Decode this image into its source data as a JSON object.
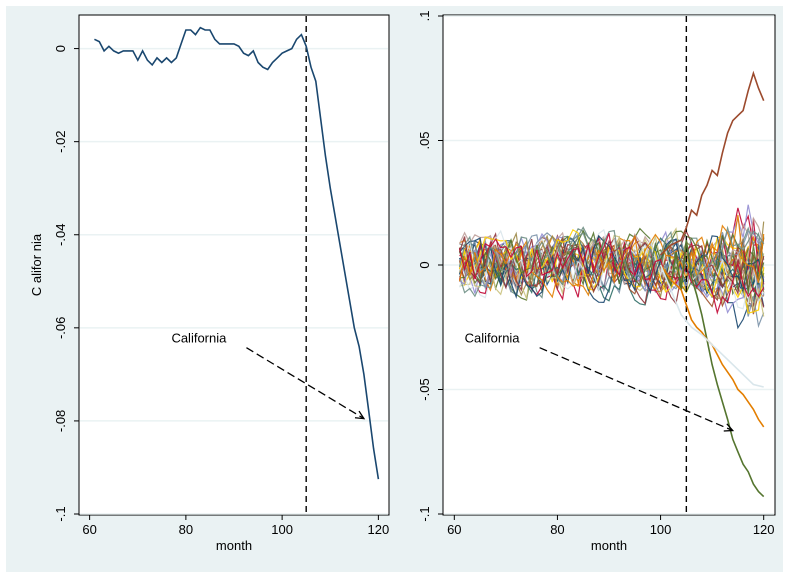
{
  "chart_data": [
    {
      "type": "line",
      "panel": "left",
      "xlabel": "month",
      "ylabel": "C alifor nia",
      "xlim": [
        58,
        122
      ],
      "ylim": [
        -0.1,
        0.007
      ],
      "xticks": [
        60,
        80,
        100,
        120
      ],
      "xtick_labels": [
        "60",
        "80",
        "100",
        "120"
      ],
      "yticks": [
        0,
        -0.02,
        -0.04,
        -0.06,
        -0.08,
        -0.1
      ],
      "ytick_labels": [
        "0",
        "-.02",
        "-.04",
        "-.06",
        "-.08",
        "-.1"
      ],
      "grid": true,
      "vline_x": 105,
      "annotation": {
        "text": "California",
        "text_at": [
          77,
          -0.0632
        ],
        "arrow_to": [
          117,
          -0.0795
        ]
      },
      "series": [
        {
          "color": "#1a476f",
          "x": [
            61,
            62,
            63,
            64,
            65,
            66,
            67,
            68,
            69,
            70,
            71,
            72,
            73,
            74,
            75,
            76,
            77,
            78,
            79,
            80,
            81,
            82,
            83,
            84,
            85,
            86,
            87,
            88,
            89,
            90,
            91,
            92,
            93,
            94,
            95,
            96,
            97,
            98,
            99,
            100,
            101,
            102,
            103,
            104,
            105,
            106,
            107,
            108,
            109,
            110,
            111,
            112,
            113,
            114,
            115,
            116,
            117,
            118,
            119,
            120
          ],
          "y": [
            0.002,
            0.0015,
            -0.0005,
            0.0005,
            -0.0005,
            -0.001,
            -0.0005,
            -0.0005,
            -0.0005,
            -0.0025,
            -0.0005,
            -0.0025,
            -0.0035,
            -0.002,
            -0.003,
            -0.002,
            -0.003,
            -0.002,
            0.001,
            0.004,
            0.004,
            0.003,
            0.0045,
            0.004,
            0.004,
            0.002,
            0.001,
            0.001,
            0.001,
            0.001,
            0.0005,
            -0.001,
            -0.0015,
            -0.0005,
            -0.003,
            -0.004,
            -0.0045,
            -0.003,
            -0.002,
            -0.001,
            -0.0005,
            0.0,
            0.002,
            0.003,
            0.0005,
            -0.004,
            -0.007,
            -0.015,
            -0.023,
            -0.03,
            -0.036,
            -0.042,
            -0.048,
            -0.054,
            -0.06,
            -0.064,
            -0.07,
            -0.078,
            -0.086,
            -0.0925
          ]
        }
      ]
    },
    {
      "type": "line",
      "panel": "right",
      "xlabel": "month",
      "xlim": [
        58,
        122
      ],
      "ylim": [
        -0.1,
        0.1
      ],
      "xticks": [
        60,
        80,
        100,
        120
      ],
      "xtick_labels": [
        "60",
        "80",
        "100",
        "120"
      ],
      "yticks": [
        0.1,
        0.05,
        0,
        -0.05,
        -0.1
      ],
      "ytick_labels": [
        ".1",
        ".05",
        "0",
        "-.05",
        "-.1"
      ],
      "grid": true,
      "vline_x": 105,
      "annotation": {
        "text": "California",
        "text_at": [
          62,
          -0.0312
        ],
        "arrow_to": [
          114,
          -0.0665
        ]
      },
      "noise_series_count": 36,
      "noise_band": [
        -0.015,
        0.015
      ],
      "noise_palette": [
        "#1a476f",
        "#90353b",
        "#55752f",
        "#e37e00",
        "#6e8e84",
        "#c10534",
        "#938dd2",
        "#cac27e",
        "#a0522d",
        "#7b92a8",
        "#2d6d66",
        "#9c8847",
        "#bfa19c",
        "#ffd200",
        "#d9e6eb"
      ],
      "series": [
        {
          "color": "#9c4a2d",
          "x": [
            100,
            102,
            104,
            105,
            106,
            107,
            108,
            109,
            110,
            111,
            112,
            113,
            114,
            115,
            116,
            117,
            118,
            119,
            120
          ],
          "y": [
            0.004,
            0.008,
            0.01,
            0.015,
            0.022,
            0.02,
            0.028,
            0.032,
            0.038,
            0.036,
            0.045,
            0.053,
            0.058,
            0.06,
            0.062,
            0.07,
            0.077,
            0.071,
            0.066
          ]
        },
        {
          "color": "#55752f",
          "x": [
            100,
            101,
            102,
            103,
            104,
            105,
            106,
            107,
            108,
            109,
            110,
            111,
            112,
            113,
            114,
            115,
            116,
            117,
            118,
            119,
            120
          ],
          "y": [
            0.0,
            -0.004,
            -0.008,
            0.005,
            -0.01,
            0.01,
            -0.005,
            -0.012,
            -0.02,
            -0.03,
            -0.04,
            -0.048,
            -0.055,
            -0.062,
            -0.07,
            -0.075,
            -0.08,
            -0.083,
            -0.088,
            -0.091,
            -0.093
          ]
        },
        {
          "color": "#e37e00",
          "x": [
            100,
            102,
            104,
            105,
            106,
            107,
            108,
            109,
            110,
            111,
            112,
            113,
            114,
            115,
            116,
            117,
            118,
            119,
            120
          ],
          "y": [
            0.0,
            -0.006,
            -0.01,
            -0.016,
            -0.022,
            -0.025,
            -0.027,
            -0.03,
            -0.032,
            -0.036,
            -0.04,
            -0.043,
            -0.046,
            -0.05,
            -0.052,
            -0.055,
            -0.058,
            -0.062,
            -0.065
          ]
        },
        {
          "color": "#d9e6eb",
          "x": [
            100,
            104,
            106,
            108,
            110,
            112,
            114,
            116,
            118,
            120
          ],
          "y": [
            0.0,
            -0.02,
            -0.025,
            -0.028,
            -0.032,
            -0.036,
            -0.04,
            -0.044,
            -0.048,
            -0.049
          ]
        }
      ]
    }
  ]
}
